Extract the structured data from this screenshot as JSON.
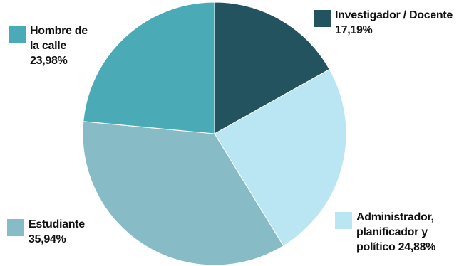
{
  "chart_data": {
    "type": "pie",
    "title": "",
    "slices": [
      {
        "key": "investigador",
        "label": "Investigador / Docente",
        "value": 17.19,
        "value_label": "17,19%",
        "color": "#22535e"
      },
      {
        "key": "administrador",
        "label": "Administrador, planificador y político",
        "value": 24.88,
        "value_label": "24,88%",
        "color": "#b9e6f2"
      },
      {
        "key": "estudiante",
        "label": "Estudiante",
        "value": 35.94,
        "value_label": "35,94%",
        "color": "#87bcc7"
      },
      {
        "key": "hombre",
        "label": "Hombre de la calle",
        "value": 23.98,
        "value_label": "23,98%",
        "color": "#4aaab6"
      }
    ],
    "start_angle_deg": 0,
    "direction": "clockwise",
    "legend_placement": "around"
  }
}
